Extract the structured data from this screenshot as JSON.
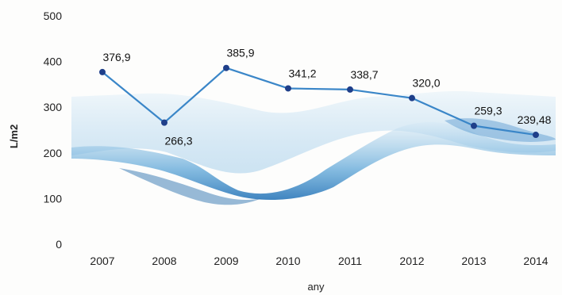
{
  "chart_data": {
    "type": "line",
    "xlabel": "any",
    "ylabel": "L/m2",
    "ylim": [
      0,
      500
    ],
    "yticks": [
      0,
      100,
      200,
      300,
      400,
      500
    ],
    "categories": [
      "2007",
      "2008",
      "2009",
      "2010",
      "2011",
      "2012",
      "2013",
      "2014"
    ],
    "values": [
      376.9,
      266.3,
      385.9,
      341.2,
      338.7,
      320.0,
      259.3,
      239.48
    ],
    "data_labels": [
      "376,9",
      "266,3",
      "385,9",
      "341,2",
      "338,7",
      "320,0",
      "259,3",
      "239,48"
    ],
    "grid": false,
    "line_color": "#3a86c8",
    "marker_color": "#1f3f8a",
    "background_image": "water-splash"
  }
}
